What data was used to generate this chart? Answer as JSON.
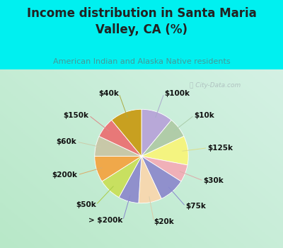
{
  "title": "Income distribution in Santa Maria\nValley, CA (%)",
  "subtitle": "American Indian and Alaska Native residents",
  "watermark": "ⓘ City-Data.com",
  "labels": [
    "$100k",
    "$10k",
    "$125k",
    "$30k",
    "$75k",
    "$20k",
    "> $200k",
    "$50k",
    "$200k",
    "$60k",
    "$150k",
    "$40k"
  ],
  "values": [
    11,
    7,
    10,
    6,
    9,
    8,
    7,
    8,
    9,
    7,
    7,
    11
  ],
  "colors": [
    "#b8a8d8",
    "#b0cca8",
    "#f4f480",
    "#f0b0b8",
    "#9090cc",
    "#f5d8b0",
    "#9090cc",
    "#c8e060",
    "#f0a84a",
    "#c8c8a8",
    "#e87878",
    "#c8a020"
  ],
  "bg_color_top": "#00f0f0",
  "bg_color_chart_left": "#b8e8c8",
  "bg_color_chart_right": "#e0f5f0",
  "title_color": "#222222",
  "subtitle_color": "#449999",
  "label_fontsize": 7.5,
  "label_color": "#111111",
  "title_fontsize": 12,
  "subtitle_fontsize": 8,
  "watermark_color": "#aabbbb",
  "line_colors": [
    "#aaaacc",
    "#aaccaa",
    "#dddd88",
    "#ddaaaa",
    "#8888cc",
    "#ddccaa",
    "#8888cc",
    "#aacc44",
    "#ddaa66",
    "#ccccaa",
    "#dd8888",
    "#aaaa44"
  ]
}
